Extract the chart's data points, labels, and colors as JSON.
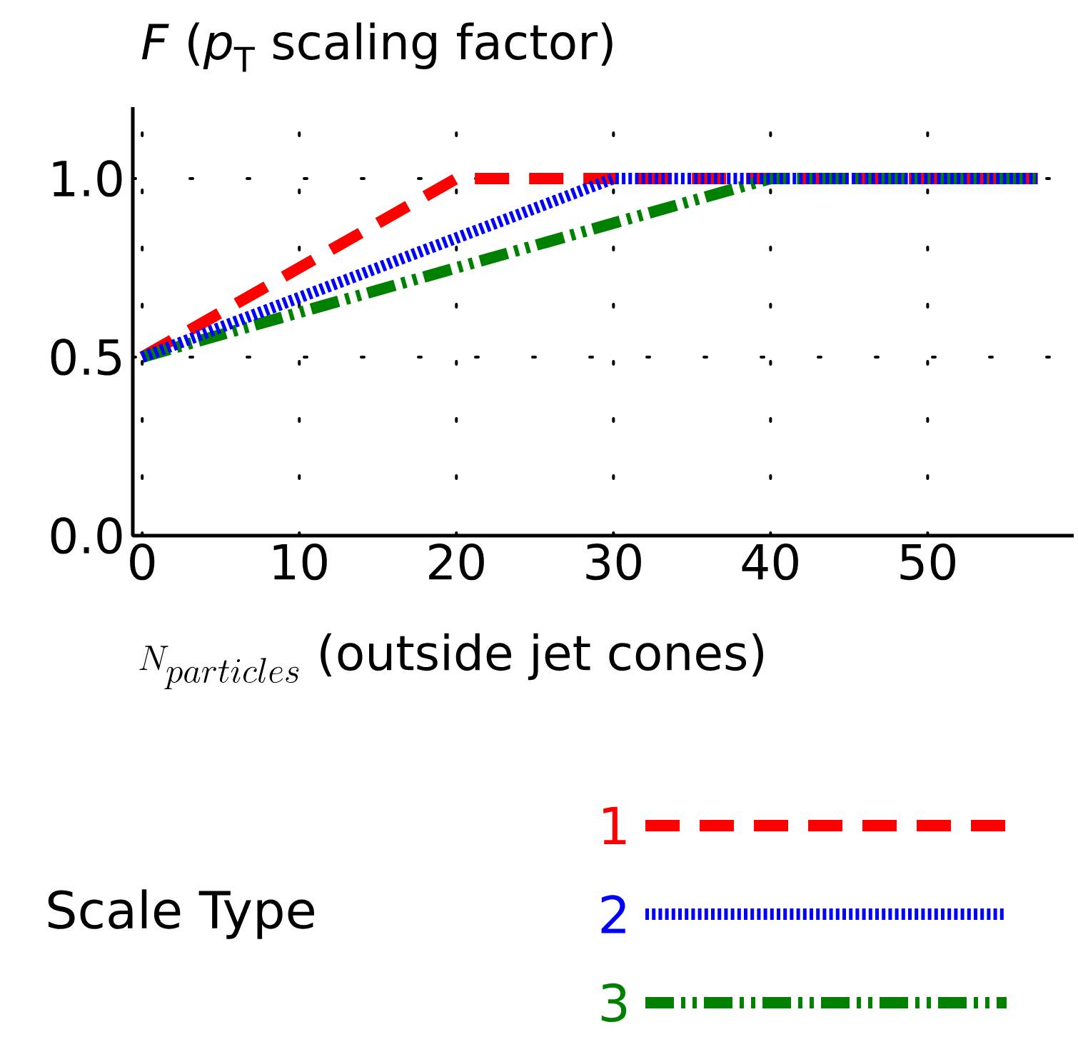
{
  "chart_data": {
    "type": "line",
    "ylabel": "*F* (*p*$_{T}$ scaling factor)",
    "xlabel": "N_{particles}\\ \\mbox{(outside jet cones)}",
    "legend_title": "Scale Type",
    "series": [
      {
        "name": "1",
        "color": "#ff0000",
        "line_style": "dashed",
        "x": [
          0,
          20,
          57
        ],
        "values": [
          0.5,
          1.0,
          1.0
        ]
      },
      {
        "name": "2",
        "color": "#0000ff",
        "line_style": "dotted",
        "x": [
          0,
          30,
          57
        ],
        "values": [
          0.5,
          1.0,
          1.0
        ]
      },
      {
        "name": "3",
        "color": "#008000",
        "line_style": "dashdot",
        "x": [
          0,
          40,
          57
        ],
        "values": [
          0.5,
          1.0,
          1.0
        ]
      }
    ],
    "xlim": [
      -0.6,
      59.3
    ],
    "ylim": [
      0,
      1.2
    ],
    "xticks": [
      0,
      10,
      20,
      30,
      40,
      50
    ],
    "yticks": [
      {
        "value": 0,
        "label": "0.0"
      },
      {
        "value": 0.5,
        "label": "0.5"
      },
      {
        "value": 1.0,
        "label": "1.0"
      }
    ],
    "grid": true,
    "legend": "bottom"
  }
}
